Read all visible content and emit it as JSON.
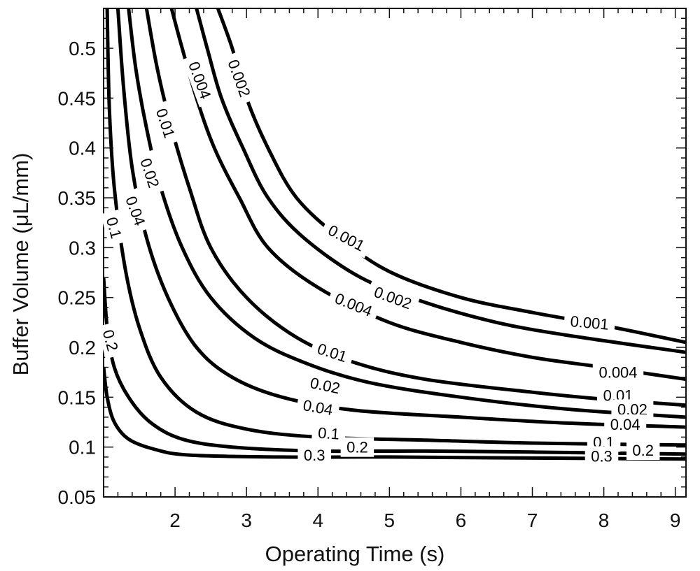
{
  "chart_data": {
    "type": "contour",
    "xlabel": "Operating Time (s)",
    "ylabel": "Buffer Volume (μL/mm)",
    "xlim": [
      1.0,
      9.15
    ],
    "ylim": [
      0.05,
      0.54
    ],
    "x_ticks": [
      2,
      3,
      4,
      5,
      6,
      7,
      8,
      9
    ],
    "y_ticks": [
      0.05,
      0.1,
      0.15,
      0.2,
      0.25,
      0.3,
      0.35,
      0.4,
      0.45,
      0.5
    ],
    "y_tick_labels": [
      "0.05",
      "0.1",
      "0.15",
      "0.2",
      "0.25",
      "0.3",
      "0.35",
      "0.4",
      "0.45",
      "0.5"
    ],
    "grid": false,
    "contours": [
      {
        "level": "0.001",
        "points": [
          [
            2.6,
            0.54
          ],
          [
            2.8,
            0.5
          ],
          [
            3.0,
            0.45
          ],
          [
            3.3,
            0.4
          ],
          [
            3.7,
            0.35
          ],
          [
            4.3,
            0.31
          ],
          [
            5.0,
            0.276
          ],
          [
            6.0,
            0.25
          ],
          [
            7.0,
            0.235
          ],
          [
            8.0,
            0.222
          ],
          [
            9.15,
            0.205
          ]
        ],
        "labels": [
          {
            "text": "0.001",
            "x": 4.4,
            "y": 0.31,
            "angle": 28
          },
          {
            "text": "0.001",
            "x": 7.8,
            "y": 0.225,
            "angle": 5
          }
        ]
      },
      {
        "level": "0.002",
        "points": [
          [
            2.3,
            0.54
          ],
          [
            2.45,
            0.5
          ],
          [
            2.65,
            0.45
          ],
          [
            2.95,
            0.4
          ],
          [
            3.3,
            0.35
          ],
          [
            3.8,
            0.31
          ],
          [
            4.6,
            0.27
          ],
          [
            5.5,
            0.245
          ],
          [
            6.5,
            0.225
          ],
          [
            7.5,
            0.212
          ],
          [
            9.15,
            0.195
          ]
        ],
        "labels": [
          {
            "text": "0.002",
            "x": 2.9,
            "y": 0.47,
            "angle": 70
          },
          {
            "text": "0.002",
            "x": 5.05,
            "y": 0.25,
            "angle": 20
          }
        ]
      },
      {
        "level": "0.004",
        "points": [
          [
            1.95,
            0.54
          ],
          [
            2.1,
            0.5
          ],
          [
            2.3,
            0.45
          ],
          [
            2.55,
            0.4
          ],
          [
            2.9,
            0.35
          ],
          [
            3.3,
            0.3
          ],
          [
            4.0,
            0.26
          ],
          [
            5.0,
            0.225
          ],
          [
            6.0,
            0.205
          ],
          [
            7.0,
            0.19
          ],
          [
            8.0,
            0.18
          ],
          [
            9.15,
            0.168
          ]
        ],
        "labels": [
          {
            "text": "0.004",
            "x": 2.35,
            "y": 0.468,
            "angle": 70
          },
          {
            "text": "0.004",
            "x": 4.5,
            "y": 0.243,
            "angle": 22
          },
          {
            "text": "0.004",
            "x": 8.2,
            "y": 0.175,
            "angle": 0
          }
        ]
      },
      {
        "level": "0.01",
        "points": [
          [
            1.6,
            0.54
          ],
          [
            1.75,
            0.48
          ],
          [
            1.95,
            0.42
          ],
          [
            2.2,
            0.36
          ],
          [
            2.5,
            0.3
          ],
          [
            3.0,
            0.25
          ],
          [
            3.7,
            0.21
          ],
          [
            4.5,
            0.185
          ],
          [
            5.5,
            0.168
          ],
          [
            7.0,
            0.155
          ],
          [
            8.0,
            0.148
          ],
          [
            9.15,
            0.142
          ]
        ],
        "labels": [
          {
            "text": "0.01",
            "x": 1.87,
            "y": 0.425,
            "angle": 72
          },
          {
            "text": "0.01",
            "x": 4.2,
            "y": 0.195,
            "angle": 18
          },
          {
            "text": "0.01",
            "x": 8.2,
            "y": 0.152,
            "angle": 0
          }
        ]
      },
      {
        "level": "0.02",
        "points": [
          [
            1.35,
            0.54
          ],
          [
            1.45,
            0.48
          ],
          [
            1.6,
            0.42
          ],
          [
            1.8,
            0.36
          ],
          [
            2.1,
            0.3
          ],
          [
            2.5,
            0.25
          ],
          [
            3.1,
            0.21
          ],
          [
            3.8,
            0.185
          ],
          [
            4.7,
            0.165
          ],
          [
            6.0,
            0.15
          ],
          [
            7.5,
            0.138
          ],
          [
            9.15,
            0.13
          ]
        ],
        "labels": [
          {
            "text": "0.02",
            "x": 1.65,
            "y": 0.375,
            "angle": 72
          },
          {
            "text": "0.02",
            "x": 4.1,
            "y": 0.162,
            "angle": 12
          },
          {
            "text": "0.02",
            "x": 8.4,
            "y": 0.138,
            "angle": 0
          }
        ]
      },
      {
        "level": "0.04",
        "points": [
          [
            1.2,
            0.54
          ],
          [
            1.28,
            0.46
          ],
          [
            1.4,
            0.38
          ],
          [
            1.6,
            0.31
          ],
          [
            1.9,
            0.25
          ],
          [
            2.3,
            0.2
          ],
          [
            2.8,
            0.17
          ],
          [
            3.5,
            0.15
          ],
          [
            4.5,
            0.137
          ],
          [
            6.0,
            0.13
          ],
          [
            7.5,
            0.124
          ],
          [
            9.15,
            0.12
          ]
        ],
        "labels": [
          {
            "text": "0.04",
            "x": 1.45,
            "y": 0.337,
            "angle": 70
          },
          {
            "text": "0.04",
            "x": 4.0,
            "y": 0.14,
            "angle": 10
          },
          {
            "text": "0.04",
            "x": 8.3,
            "y": 0.123,
            "angle": 0
          }
        ]
      },
      {
        "level": "0.1",
        "points": [
          [
            1.05,
            0.54
          ],
          [
            1.08,
            0.44
          ],
          [
            1.15,
            0.36
          ],
          [
            1.3,
            0.28
          ],
          [
            1.5,
            0.22
          ],
          [
            1.8,
            0.17
          ],
          [
            2.3,
            0.135
          ],
          [
            3.0,
            0.118
          ],
          [
            4.0,
            0.11
          ],
          [
            5.5,
            0.107
          ],
          [
            7.0,
            0.104
          ],
          [
            9.15,
            0.102
          ]
        ],
        "labels": [
          {
            "text": "0.1",
            "x": 1.15,
            "y": 0.32,
            "angle": 75
          },
          {
            "text": "0.1",
            "x": 4.15,
            "y": 0.114,
            "angle": 4
          },
          {
            "text": "0.1",
            "x": 8.0,
            "y": 0.105,
            "angle": 0
          }
        ]
      },
      {
        "level": "0.2",
        "points": [
          [
            1.0,
            0.27
          ],
          [
            1.05,
            0.22
          ],
          [
            1.15,
            0.18
          ],
          [
            1.35,
            0.15
          ],
          [
            1.65,
            0.125
          ],
          [
            2.1,
            0.108
          ],
          [
            2.8,
            0.1
          ],
          [
            4.0,
            0.096
          ],
          [
            5.5,
            0.096
          ],
          [
            7.0,
            0.095
          ],
          [
            9.15,
            0.093
          ]
        ],
        "labels": [
          {
            "text": "0.2",
            "x": 1.1,
            "y": 0.207,
            "angle": 75
          },
          {
            "text": "0.2",
            "x": 4.55,
            "y": 0.1,
            "angle": 0
          },
          {
            "text": "0.2",
            "x": 8.55,
            "y": 0.097,
            "angle": 0
          }
        ]
      },
      {
        "level": "0.3",
        "points": [
          [
            1.0,
            0.18
          ],
          [
            1.05,
            0.15
          ],
          [
            1.15,
            0.125
          ],
          [
            1.35,
            0.108
          ],
          [
            1.7,
            0.098
          ],
          [
            2.2,
            0.092
          ],
          [
            3.5,
            0.09
          ],
          [
            5.0,
            0.09
          ],
          [
            7.0,
            0.089
          ],
          [
            9.15,
            0.088
          ]
        ],
        "labels": [
          {
            "text": "0.3",
            "x": 3.95,
            "y": 0.092,
            "angle": 0
          },
          {
            "text": "0.3",
            "x": 7.97,
            "y": 0.091,
            "angle": 0
          }
        ]
      }
    ]
  }
}
